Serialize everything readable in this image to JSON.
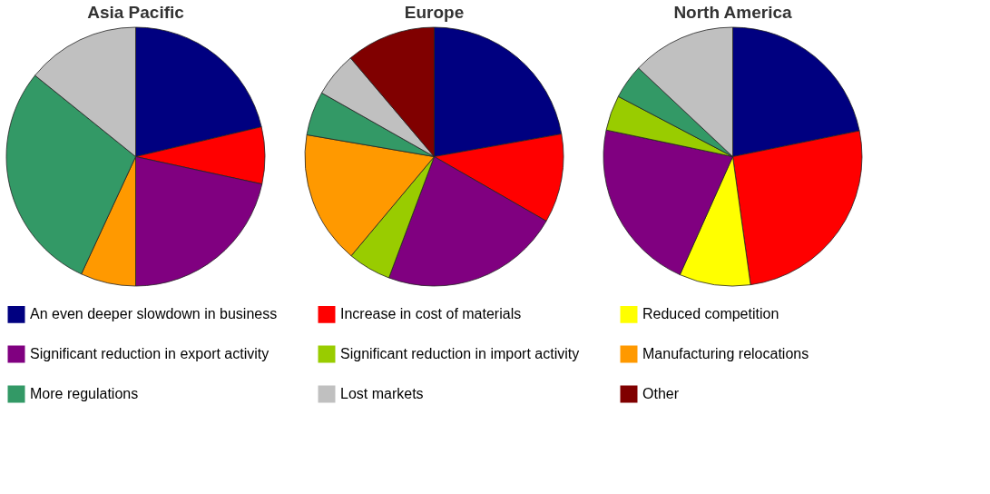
{
  "chart_data": {
    "type": "pie",
    "legend": "bottom",
    "categories": [
      "An even deeper slowdown in business",
      "Increase in cost of materials",
      "Reduced competition",
      "Significant reduction in export activity",
      "Significant reduction in import activity",
      "Manufacturing relocations",
      "More regulations",
      "Lost markets",
      "Other"
    ],
    "colors": [
      "#000080",
      "#ff0000",
      "#ffff00",
      "#800080",
      "#99cc00",
      "#ff9900",
      "#339966",
      "#c0c0c0",
      "#800000"
    ],
    "series": [
      {
        "name": "Asia Pacific",
        "values": [
          21.3,
          7.1,
          null,
          21.6,
          null,
          6.9,
          28.9,
          14.2,
          null
        ]
      },
      {
        "name": "Europe",
        "values": [
          22.2,
          11.1,
          null,
          22.4,
          5.4,
          16.6,
          5.5,
          5.6,
          11.2
        ]
      },
      {
        "name": "North America",
        "values": [
          21.8,
          26.0,
          8.9,
          21.6,
          4.4,
          null,
          4.3,
          13.0,
          null
        ]
      }
    ]
  }
}
